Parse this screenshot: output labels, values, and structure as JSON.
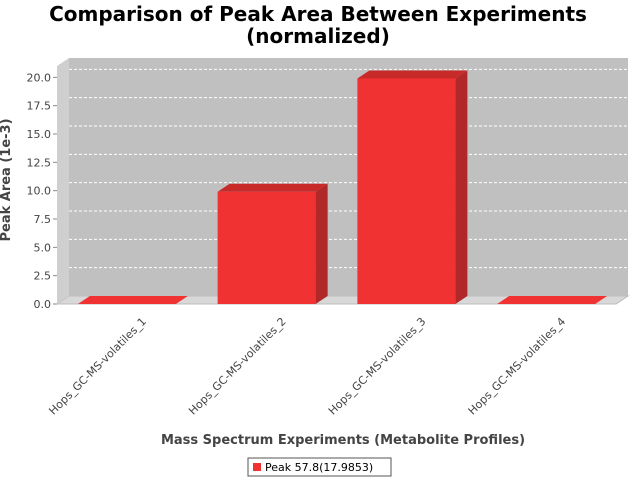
{
  "chart_data": {
    "type": "bar",
    "title": "Comparison of Peak Area Between Experiments",
    "title_line2": "(normalized)",
    "xlabel": "Mass Spectrum Experiments (Metabolite Profiles)",
    "ylabel": "Peak Area (1e-3)",
    "categories": [
      "Hops_GC-MS-volatiles_1",
      "Hops_GC-MS-volatiles_2",
      "Hops_GC-MS-volatiles_3",
      "Hops_GC-MS-volatiles_4"
    ],
    "series": [
      {
        "name": "Peak 57.8(17.9853)",
        "values": [
          0.0,
          9.9,
          19.9,
          0.0
        ]
      }
    ],
    "ylim": [
      0,
      21
    ],
    "yticks": [
      0.0,
      2.5,
      5.0,
      7.5,
      10.0,
      12.5,
      15.0,
      17.5,
      20.0
    ],
    "ytick_labels": [
      "0.0",
      "2.5",
      "5.0",
      "7.5",
      "10.0",
      "12.5",
      "15.0",
      "17.5",
      "20.0"
    ],
    "grid": true,
    "legend_position": "bottom",
    "colors": {
      "bar_front": "#f03232",
      "bar_side": "#b02828",
      "bar_top": "#c82a2a",
      "plot_back": "#c0c0c0",
      "plot_floor": "#d8d8d8",
      "gridline": "#ffffff"
    }
  }
}
